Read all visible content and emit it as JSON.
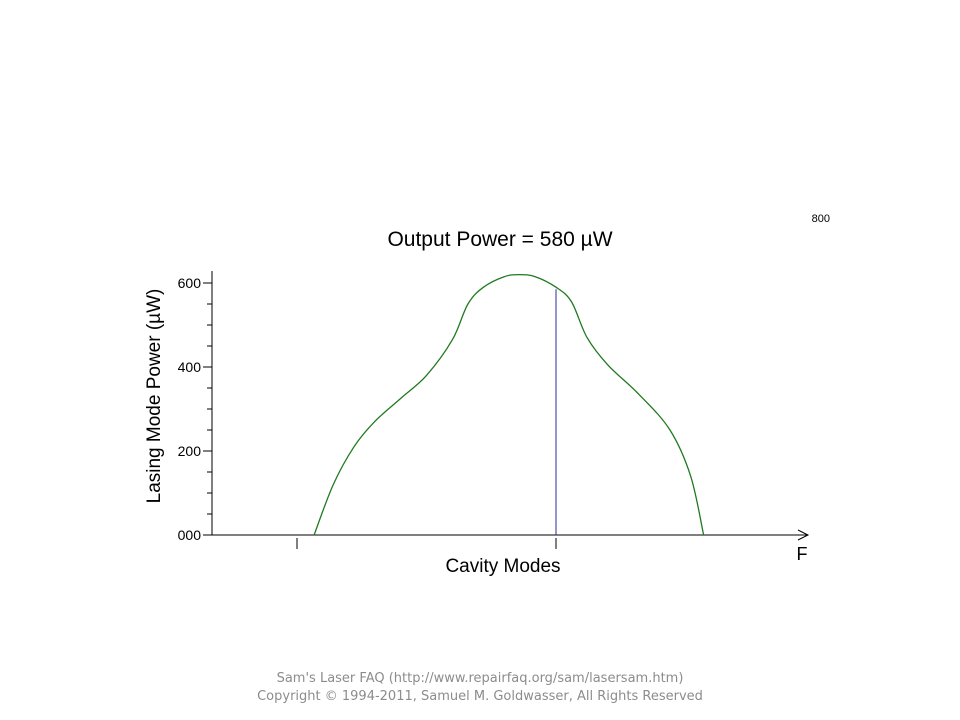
{
  "chart_data": {
    "type": "line",
    "title": "Output Power = 580 µW",
    "corner_label": "800",
    "xlabel": "Cavity Modes",
    "x_axis_end_label": "F",
    "ylabel": "Lasing Mode Power (µW)",
    "ylim": [
      0,
      640
    ],
    "xlim": [
      0,
      10
    ],
    "grid": false,
    "yticks": [
      {
        "value": 0,
        "label": "000"
      },
      {
        "value": 200,
        "label": "200"
      },
      {
        "value": 400,
        "label": "400"
      },
      {
        "value": 600,
        "label": "600"
      }
    ],
    "y_minor_step": 50,
    "x_ticks": [
      0,
      5
    ],
    "curve_color": "#1f7a1f",
    "marker_color": "#2b2b9c",
    "marker_x": 5,
    "series": [
      {
        "x": [
          0.33,
          0.7,
          1.1,
          1.5,
          2.0,
          2.5,
          3.0,
          3.3,
          3.6,
          4.0,
          4.3,
          4.6,
          5.0,
          5.3,
          5.6,
          6.0,
          6.6,
          7.2,
          7.6,
          7.85
        ],
        "values": [
          0,
          120,
          210,
          270,
          325,
          380,
          465,
          550,
          590,
          615,
          620,
          615,
          590,
          555,
          470,
          405,
          335,
          250,
          140,
          0
        ]
      }
    ],
    "marker_value": 585
  },
  "footer": {
    "line1": "Sam's Laser FAQ (http://www.repairfaq.org/sam/lasersam.htm)",
    "line2": "Copyright © 1994-2011, Samuel M. Goldwasser, All Rights Reserved"
  }
}
